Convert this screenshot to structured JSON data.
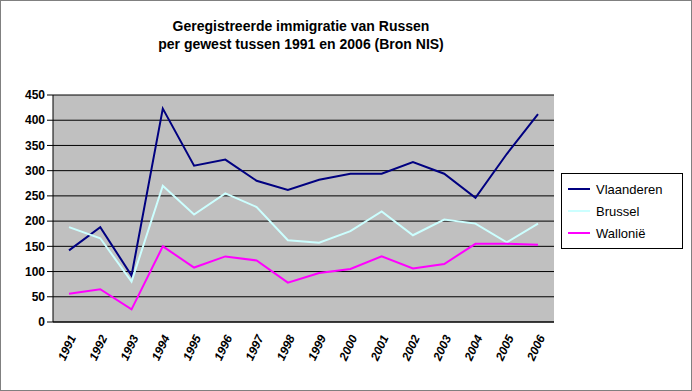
{
  "chart_data": {
    "type": "line",
    "title": "Geregistreerde immigratie van Russen\nper gewest tussen 1991 en 2006 (Bron NIS)",
    "categories": [
      "1991",
      "1992",
      "1993",
      "1994",
      "1995",
      "1996",
      "1997",
      "1998",
      "1999",
      "2000",
      "2001",
      "2002",
      "2003",
      "2004",
      "2005",
      "2006"
    ],
    "series": [
      {
        "name": "Vlaanderen",
        "color": "#000080",
        "values": [
          142,
          188,
          92,
          423,
          310,
          322,
          280,
          262,
          282,
          294,
          294,
          317,
          294,
          246,
          333,
          412
        ]
      },
      {
        "name": "Brussel",
        "color": "#CCFFFF",
        "values": [
          188,
          166,
          80,
          270,
          213,
          255,
          228,
          162,
          157,
          180,
          219,
          172,
          203,
          195,
          158,
          195
        ]
      },
      {
        "name": "Wallonië",
        "color": "#FF00FF",
        "values": [
          56,
          65,
          25,
          150,
          108,
          130,
          122,
          78,
          97,
          105,
          130,
          106,
          115,
          155,
          155,
          153
        ]
      }
    ],
    "ylim": [
      0,
      450
    ],
    "yticks": [
      0,
      50,
      100,
      150,
      200,
      250,
      300,
      350,
      400,
      450
    ],
    "grid": true,
    "legend": "right"
  }
}
